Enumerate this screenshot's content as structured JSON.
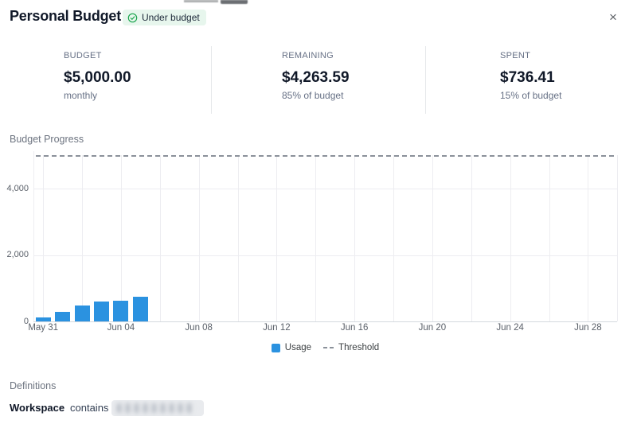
{
  "header": {
    "title": "Personal Budget",
    "badge": {
      "label": "Under budget",
      "icon": "check-circle-icon",
      "bg": "#e7f6ed",
      "icon_color": "#17a34a"
    },
    "close_label": "×"
  },
  "stats": [
    {
      "label": "BUDGET",
      "value": "$5,000.00",
      "sub": "monthly"
    },
    {
      "label": "REMAINING",
      "value": "$4,263.59",
      "sub": "85% of budget"
    },
    {
      "label": "SPENT",
      "value": "$736.41",
      "sub": "15% of budget"
    }
  ],
  "chart": {
    "title": "Budget Progress",
    "legend": [
      {
        "label": "Usage",
        "swatch": "blue-square"
      },
      {
        "label": "Threshold",
        "swatch": "gray-dashes"
      }
    ]
  },
  "chart_data": {
    "type": "bar",
    "title": "Budget Progress",
    "x": [
      "May 31",
      "Jun 01",
      "Jun 02",
      "Jun 03",
      "Jun 04",
      "Jun 05"
    ],
    "series": [
      {
        "name": "Usage",
        "values": [
          120,
          280,
          470,
          610,
          625,
          736
        ]
      }
    ],
    "threshold": {
      "name": "Threshold",
      "value": 5000,
      "style": "dashed"
    },
    "xlabel": "",
    "ylabel": "",
    "ylim": [
      0,
      5250
    ],
    "yticks": {
      "values": [
        0,
        2000,
        4000
      ],
      "labels": [
        "0",
        "2,000",
        "4,000"
      ]
    },
    "xticks": [
      {
        "label": "May 31",
        "day": 0
      },
      {
        "label": "Jun 04",
        "day": 4
      },
      {
        "label": "Jun 08",
        "day": 8
      },
      {
        "label": "Jun 12",
        "day": 12
      },
      {
        "label": "Jun 16",
        "day": 16
      },
      {
        "label": "Jun 20",
        "day": 20
      },
      {
        "label": "Jun 24",
        "day": 24
      },
      {
        "label": "Jun 28",
        "day": 28
      }
    ],
    "x_range_days": 30,
    "grid": true,
    "legend_position": "bottom",
    "colors": {
      "bar": "#2b92e0",
      "threshold": "#8b919a"
    }
  },
  "definitions": {
    "title": "Definitions",
    "rows": [
      {
        "field": "Workspace",
        "operator": "contains",
        "value": "",
        "value_redacted": true
      }
    ]
  }
}
